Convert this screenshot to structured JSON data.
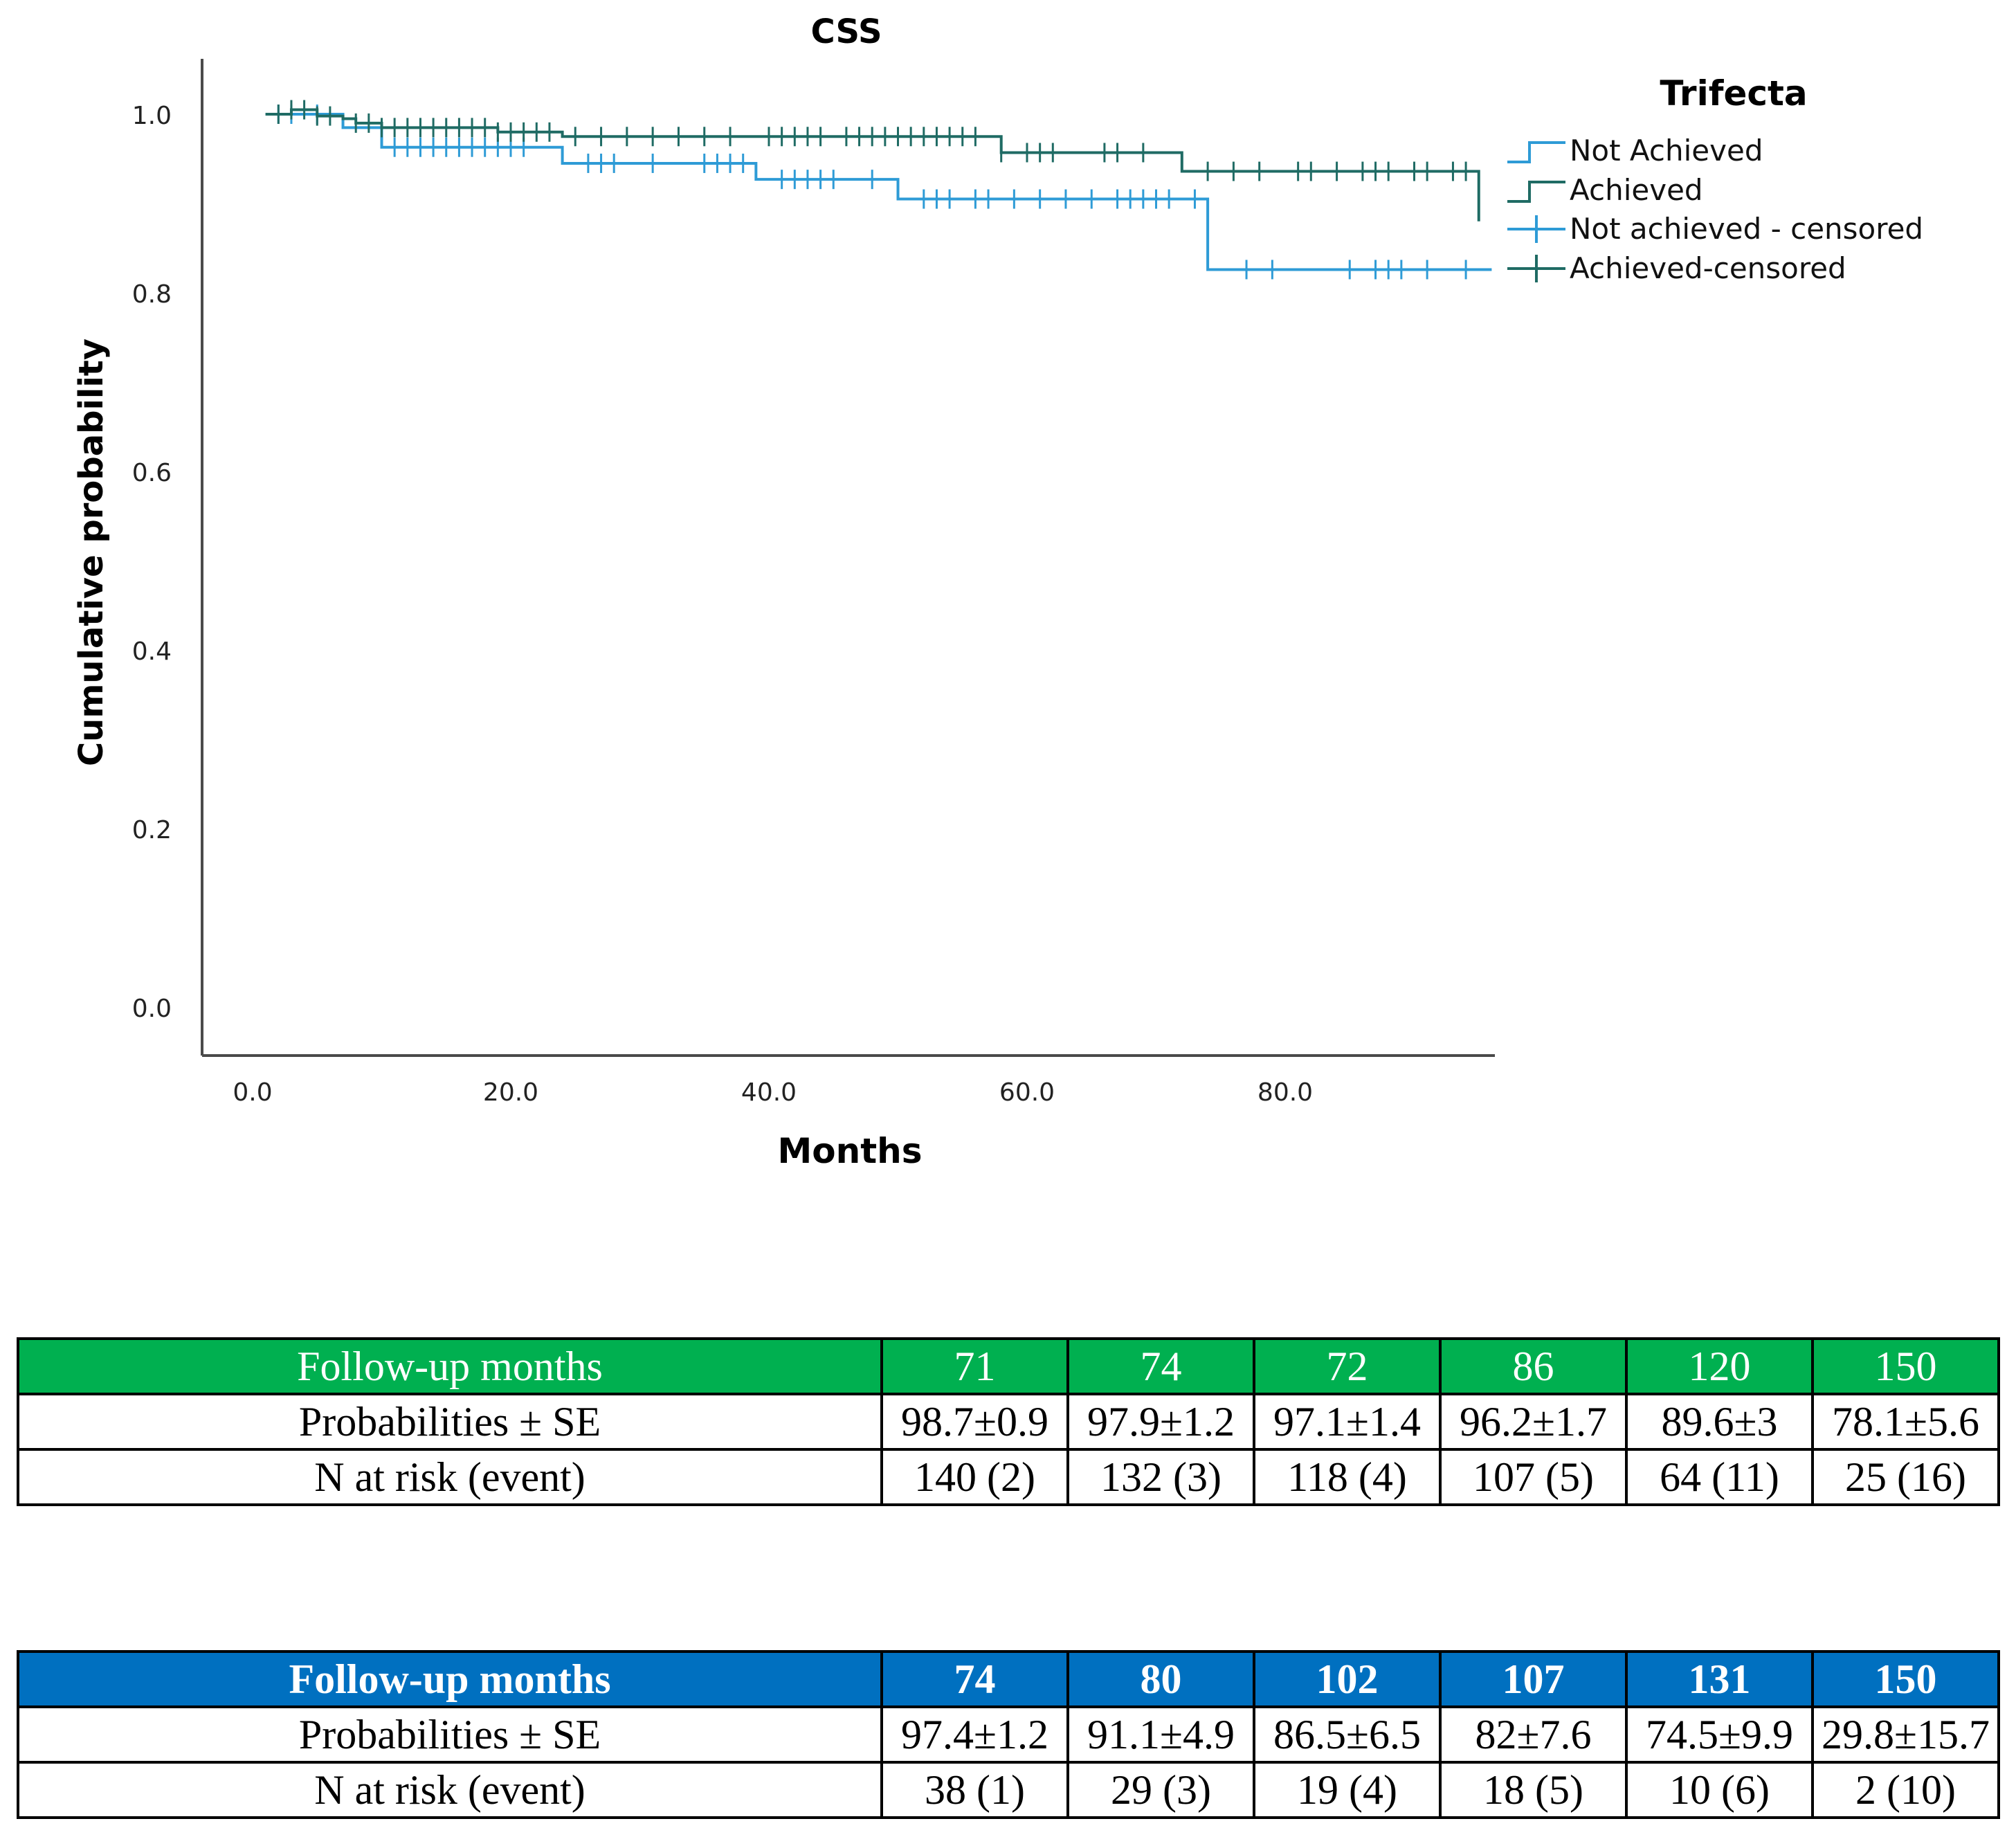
{
  "chart_data": {
    "type": "line",
    "subtype": "kaplan-meier",
    "title": "CSS",
    "xlabel": "Months",
    "ylabel": "Cumulative probability",
    "xlim": [
      0,
      96
    ],
    "ylim": [
      0,
      1.05
    ],
    "xticks": [
      0,
      20,
      40,
      60,
      80
    ],
    "xtick_labels": [
      "0.0",
      "20.0",
      "40.0",
      "60.0",
      "80.0"
    ],
    "yticks": [
      0,
      0.2,
      0.4,
      0.6,
      0.8,
      1.0
    ],
    "ytick_labels": [
      "0.0",
      "0.2",
      "0.4",
      "0.6",
      "0.8",
      "1.0"
    ],
    "legend": {
      "title": "Trifecta",
      "position": "top-right",
      "entries": [
        "Not Achieved",
        "Achieved",
        "Not achieved - censored",
        "Achieved-censored"
      ]
    },
    "series": [
      {
        "name": "Not Achieved",
        "color": "#2e9bd6",
        "steps": [
          [
            1,
            1.0
          ],
          [
            7,
            0.985
          ],
          [
            10,
            0.963
          ],
          [
            24,
            0.945
          ],
          [
            39,
            0.927
          ],
          [
            50,
            0.905
          ],
          [
            74,
            0.826
          ],
          [
            96,
            0.826
          ]
        ],
        "censored": [
          2,
          3,
          5,
          11,
          12,
          13,
          14,
          15,
          16,
          17,
          18,
          19,
          20,
          21,
          26,
          27,
          28,
          31,
          35,
          36,
          37,
          38,
          41,
          42,
          43,
          44,
          45,
          48,
          52,
          53,
          54,
          56,
          57,
          59,
          61,
          63,
          65,
          67,
          68,
          69,
          70,
          71,
          73,
          77,
          79,
          85,
          87,
          88,
          89,
          91,
          94
        ]
      },
      {
        "name": "Achieved",
        "color": "#1f6b64",
        "steps": [
          [
            1,
            1.0
          ],
          [
            3,
            1.005
          ],
          [
            5,
            0.998
          ],
          [
            7,
            0.995
          ],
          [
            8,
            0.99
          ],
          [
            10,
            0.985
          ],
          [
            19,
            0.98
          ],
          [
            24,
            0.975
          ],
          [
            58,
            0.957
          ],
          [
            72,
            0.936
          ],
          [
            95,
            0.88
          ]
        ],
        "censored": [
          2,
          3,
          4,
          5,
          6,
          8,
          9,
          10,
          11,
          12,
          13,
          14,
          15,
          16,
          17,
          18,
          19,
          20,
          21,
          22,
          23,
          25,
          27,
          29,
          31,
          33,
          35,
          37,
          40,
          41,
          42,
          43,
          44,
          46,
          47,
          48,
          49,
          50,
          51,
          52,
          53,
          54,
          55,
          56,
          58,
          60,
          61,
          62,
          66,
          67,
          69,
          74,
          76,
          78,
          81,
          82,
          84,
          86,
          87,
          88,
          90,
          91,
          93,
          94
        ]
      }
    ]
  },
  "tables": [
    {
      "header": [
        "Follow-up months",
        "71",
        "74",
        "72",
        "86",
        "120",
        "150"
      ],
      "rows": [
        [
          "Probabilities ± SE",
          "98.7±0.9",
          "97.9±1.2",
          "97.1±1.4",
          "96.2±1.7",
          "89.6±3",
          "78.1±5.6"
        ],
        [
          "N at risk (event)",
          "140 (2)",
          "132 (3)",
          "118 (4)",
          "107 (5)",
          "64 (11)",
          "25 (16)"
        ]
      ],
      "header_color": "#00b050"
    },
    {
      "header": [
        "Follow-up months",
        "74",
        "80",
        "102",
        "107",
        "131",
        "150"
      ],
      "rows": [
        [
          "Probabilities ± SE",
          "97.4±1.2",
          "91.1±4.9",
          "86.5±6.5",
          "82±7.6",
          "74.5±9.9",
          "29.8±15.7"
        ],
        [
          "N at risk (event)",
          "38 (1)",
          "29 (3)",
          "19 (4)",
          "18 (5)",
          "10 (6)",
          "2 (10)"
        ]
      ],
      "header_color": "#0070c0"
    }
  ]
}
